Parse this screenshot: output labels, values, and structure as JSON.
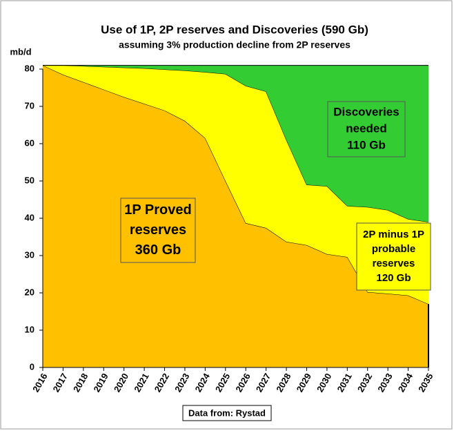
{
  "chart_data": {
    "type": "stacked_area",
    "title": "Use of 1P, 2P reserves and Discoveries (590 Gb)",
    "subtitle": "assuming 3% production decline from 2P reserves",
    "y_label": "mb/d",
    "source": "Data from: Rystad",
    "x": [
      2016,
      2017,
      2018,
      2019,
      2020,
      2021,
      2022,
      2023,
      2024,
      2025,
      2026,
      2027,
      2028,
      2029,
      2030,
      2031,
      2032,
      2033,
      2034,
      2035
    ],
    "series": [
      {
        "color": "#ffc000",
        "values": [
          81,
          78.5,
          76.5,
          74.5,
          72.5,
          70.7,
          68.9,
          66.1,
          61.5,
          50,
          38.7,
          37.4,
          33.7,
          32.8,
          30.4,
          29.6,
          20.2,
          19.8,
          19.3,
          17
        ]
      },
      {
        "color": "#ffff00",
        "values": [
          0,
          2.5,
          4.3,
          6.1,
          7.9,
          9.5,
          11,
          13.5,
          17.7,
          28.7,
          36.8,
          36.6,
          27.3,
          16.2,
          18.2,
          13.7,
          22.8,
          22.4,
          20.5,
          22
        ]
      },
      {
        "color": "#33cc33",
        "values": [
          0,
          0,
          0.2,
          0.4,
          0.6,
          0.8,
          1.1,
          1.4,
          1.8,
          2.3,
          5.5,
          7,
          20,
          32,
          32.4,
          37.7,
          38,
          38.8,
          41.2,
          42
        ]
      }
    ],
    "annotations": [
      {
        "lines": [
          "1P Proved",
          "reserves",
          "360 Gb"
        ],
        "color": "#ffc000"
      },
      {
        "lines": [
          "2P minus 1P",
          "probable",
          "reserves",
          "120 Gb"
        ],
        "color": "#ffff00"
      },
      {
        "lines": [
          "Discoveries",
          "needed",
          "110 Gb"
        ],
        "color": "#33cc33"
      }
    ],
    "xlim": [
      2016,
      2035
    ],
    "xticks": [
      2016,
      2017,
      2018,
      2019,
      2020,
      2021,
      2022,
      2023,
      2024,
      2025,
      2026,
      2027,
      2028,
      2029,
      2030,
      2031,
      2032,
      2033,
      2034,
      2035
    ],
    "ylim": [
      0,
      80
    ],
    "yticks": [
      0,
      10,
      20,
      30,
      40,
      50,
      60,
      70,
      80
    ]
  }
}
